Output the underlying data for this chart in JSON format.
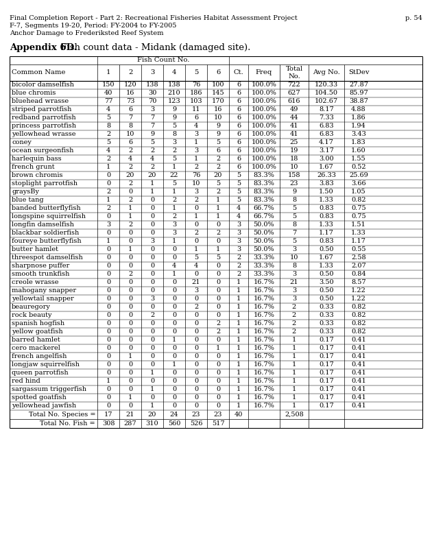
{
  "header_text1": "Final Completion Report - Part 2: Recreational Fisheries Habitat Assessment Project",
  "header_text2": "F-7, Segments 19-20, Period: FY-2004 to FY-2005",
  "header_text3": "Anchor Damage to Frederiksted Reef System",
  "page_num": "p. 54",
  "title_bold": "Appendix 6D.",
  "title_rest": "  Fish count data - Midank (damaged site).",
  "fish_count_label": "Fish Count No.",
  "col_headers": [
    "Common Name",
    "1",
    "2",
    "3",
    "4",
    "5",
    "6",
    "Ct.",
    "Freq",
    "Total\nNo.",
    "Avg No.",
    "StDev"
  ],
  "rows": [
    [
      "bicolor damselfish",
      "150",
      "120",
      "138",
      "138",
      "76",
      "100",
      "6",
      "100.0%",
      "722",
      "120.33",
      "27.87"
    ],
    [
      "blue chromis",
      "40",
      "16",
      "30",
      "210",
      "186",
      "145",
      "6",
      "100.0%",
      "627",
      "104.50",
      "85.97"
    ],
    [
      "bluehead wrasse",
      "77",
      "73",
      "70",
      "123",
      "103",
      "170",
      "6",
      "100.0%",
      "616",
      "102.67",
      "38.87"
    ],
    [
      "striped parrotfish",
      "4",
      "6",
      "3",
      "9",
      "11",
      "16",
      "6",
      "100.0%",
      "49",
      "8.17",
      "4.88"
    ],
    [
      "redband parrotfish",
      "5",
      "7",
      "7",
      "9",
      "6",
      "10",
      "6",
      "100.0%",
      "44",
      "7.33",
      "1.86"
    ],
    [
      "princess parrotfish",
      "8",
      "8",
      "7",
      "5",
      "4",
      "9",
      "6",
      "100.0%",
      "41",
      "6.83",
      "1.94"
    ],
    [
      "yellowhead wrasse",
      "2",
      "10",
      "9",
      "8",
      "3",
      "9",
      "6",
      "100.0%",
      "41",
      "6.83",
      "3.43"
    ],
    [
      "coney",
      "5",
      "6",
      "5",
      "3",
      "1",
      "5",
      "6",
      "100.0%",
      "25",
      "4.17",
      "1.83"
    ],
    [
      "ocean surgeonfish",
      "4",
      "2",
      "2",
      "2",
      "3",
      "6",
      "6",
      "100.0%",
      "19",
      "3.17",
      "1.60"
    ],
    [
      "harlequin bass",
      "2",
      "4",
      "4",
      "5",
      "1",
      "2",
      "6",
      "100.0%",
      "18",
      "3.00",
      "1.55"
    ],
    [
      "french grunt",
      "1",
      "2",
      "2",
      "1",
      "2",
      "2",
      "6",
      "100.0%",
      "10",
      "1.67",
      "0.52"
    ],
    [
      "brown chromis",
      "0",
      "20",
      "20",
      "22",
      "76",
      "20",
      "5",
      "83.3%",
      "158",
      "26.33",
      "25.69"
    ],
    [
      "stoplight parrotfish",
      "0",
      "2",
      "1",
      "5",
      "10",
      "5",
      "5",
      "83.3%",
      "23",
      "3.83",
      "3.66"
    ],
    [
      "graysBy",
      "2",
      "0",
      "1",
      "1",
      "3",
      "2",
      "5",
      "83.3%",
      "9",
      "1.50",
      "1.05"
    ],
    [
      "blue tang",
      "1",
      "2",
      "0",
      "2",
      "2",
      "1",
      "5",
      "83.3%",
      "8",
      "1.33",
      "0.82"
    ],
    [
      "banded butterflyfish",
      "2",
      "1",
      "0",
      "1",
      "0",
      "1",
      "4",
      "66.7%",
      "5",
      "0.83",
      "0.75"
    ],
    [
      "longspine squirrelfish",
      "0",
      "1",
      "0",
      "2",
      "1",
      "1",
      "4",
      "66.7%",
      "5",
      "0.83",
      "0.75"
    ],
    [
      "longfin damselfish",
      "3",
      "2",
      "0",
      "3",
      "0",
      "0",
      "3",
      "50.0%",
      "8",
      "1.33",
      "1.51"
    ],
    [
      "blackbar soldierfish",
      "0",
      "0",
      "0",
      "3",
      "2",
      "2",
      "3",
      "50.0%",
      "7",
      "1.17",
      "1.33"
    ],
    [
      "foureye butterflyfish",
      "1",
      "0",
      "3",
      "1",
      "0",
      "0",
      "3",
      "50.0%",
      "5",
      "0.83",
      "1.17"
    ],
    [
      "butter hamlet",
      "0",
      "1",
      "0",
      "0",
      "1",
      "1",
      "3",
      "50.0%",
      "3",
      "0.50",
      "0.55"
    ],
    [
      "threespot damselfish",
      "0",
      "0",
      "0",
      "0",
      "5",
      "5",
      "2",
      "33.3%",
      "10",
      "1.67",
      "2.58"
    ],
    [
      "sharpnose puffer",
      "0",
      "0",
      "0",
      "4",
      "4",
      "0",
      "2",
      "33.3%",
      "8",
      "1.33",
      "2.07"
    ],
    [
      "smooth trunkfish",
      "0",
      "2",
      "0",
      "1",
      "0",
      "0",
      "2",
      "33.3%",
      "3",
      "0.50",
      "0.84"
    ],
    [
      "creole wrasse",
      "0",
      "0",
      "0",
      "0",
      "21",
      "0",
      "1",
      "16.7%",
      "21",
      "3.50",
      "8.57"
    ],
    [
      "mahogany snapper",
      "0",
      "0",
      "0",
      "0",
      "3",
      "0",
      "1",
      "16.7%",
      "3",
      "0.50",
      "1.22"
    ],
    [
      "yellowtail snapper",
      "0",
      "0",
      "3",
      "0",
      "0",
      "0",
      "1",
      "16.7%",
      "3",
      "0.50",
      "1.22"
    ],
    [
      "beauregory",
      "0",
      "0",
      "0",
      "0",
      "2",
      "0",
      "1",
      "16.7%",
      "2",
      "0.33",
      "0.82"
    ],
    [
      "rock beauty",
      "0",
      "0",
      "2",
      "0",
      "0",
      "0",
      "1",
      "16.7%",
      "2",
      "0.33",
      "0.82"
    ],
    [
      "spanish hogfish",
      "0",
      "0",
      "0",
      "0",
      "0",
      "2",
      "1",
      "16.7%",
      "2",
      "0.33",
      "0.82"
    ],
    [
      "yellow goatfish",
      "0",
      "0",
      "0",
      "0",
      "0",
      "2",
      "1",
      "16.7%",
      "2",
      "0.33",
      "0.82"
    ],
    [
      "barred hamlet",
      "0",
      "0",
      "0",
      "1",
      "0",
      "0",
      "1",
      "16.7%",
      "1",
      "0.17",
      "0.41"
    ],
    [
      "cero mackerel",
      "0",
      "0",
      "0",
      "0",
      "0",
      "1",
      "1",
      "16.7%",
      "1",
      "0.17",
      "0.41"
    ],
    [
      "french angelfish",
      "0",
      "1",
      "0",
      "0",
      "0",
      "0",
      "1",
      "16.7%",
      "1",
      "0.17",
      "0.41"
    ],
    [
      "longjaw squirrelfish",
      "0",
      "0",
      "0",
      "1",
      "0",
      "0",
      "1",
      "16.7%",
      "1",
      "0.17",
      "0.41"
    ],
    [
      "queen parrotfish",
      "0",
      "0",
      "1",
      "0",
      "0",
      "0",
      "1",
      "16.7%",
      "1",
      "0.17",
      "0.41"
    ],
    [
      "red hind",
      "1",
      "0",
      "0",
      "0",
      "0",
      "0",
      "1",
      "16.7%",
      "1",
      "0.17",
      "0.41"
    ],
    [
      "sargassum triggerfish",
      "0",
      "0",
      "1",
      "0",
      "0",
      "0",
      "1",
      "16.7%",
      "1",
      "0.17",
      "0.41"
    ],
    [
      "spotted goatfish",
      "0",
      "1",
      "0",
      "0",
      "0",
      "0",
      "1",
      "16.7%",
      "1",
      "0.17",
      "0.41"
    ],
    [
      "yellowhead jawfish",
      "0",
      "0",
      "1",
      "0",
      "0",
      "0",
      "1",
      "16.7%",
      "1",
      "0.17",
      "0.41"
    ]
  ],
  "totals_species_label": "Total No. Species =",
  "totals_species_vals": [
    "17",
    "21",
    "20",
    "24",
    "23",
    "23",
    "40",
    "",
    "2,508",
    "",
    ""
  ],
  "totals_fish_label": "Total No. Fish =",
  "totals_fish_vals": [
    "308",
    "287",
    "310",
    "560",
    "526",
    "517",
    "",
    "",
    "",
    "",
    ""
  ]
}
